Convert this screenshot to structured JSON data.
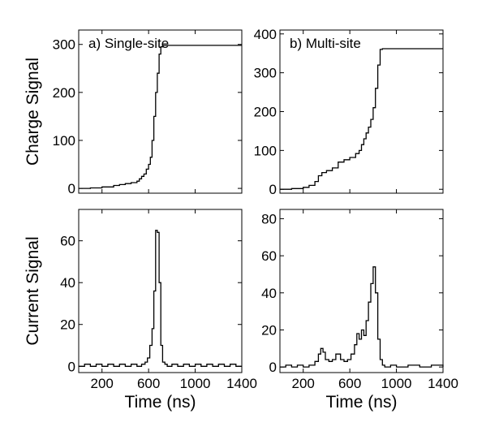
{
  "chart_data": [
    {
      "type": "line",
      "panel": "top-left",
      "annotation": "a) Single-site",
      "ylabel": "Charge Signal",
      "xlabel": "",
      "xlim": [
        0,
        1400
      ],
      "ylim": [
        -10,
        330
      ],
      "xticks": [
        200,
        600,
        1000,
        1400
      ],
      "yticks": [
        0,
        100,
        200,
        300
      ],
      "xtick_labels": [
        "",
        "",
        "",
        ""
      ],
      "ytick_labels": [
        "0",
        "100",
        "200",
        "300"
      ],
      "x": [
        0,
        100,
        200,
        300,
        350,
        400,
        450,
        500,
        520,
        540,
        560,
        580,
        600,
        615,
        630,
        645,
        660,
        675,
        690,
        705,
        720,
        740,
        800,
        900,
        1000,
        1100,
        1200,
        1300,
        1400
      ],
      "y": [
        0,
        1,
        3,
        6,
        8,
        10,
        12,
        15,
        20,
        25,
        30,
        40,
        50,
        65,
        100,
        150,
        200,
        240,
        280,
        295,
        298,
        298,
        298,
        298,
        298,
        298,
        298,
        298,
        298
      ]
    },
    {
      "type": "line",
      "panel": "top-right",
      "annotation": "b) Multi-site",
      "ylabel": "",
      "xlabel": "",
      "xlim": [
        0,
        1400
      ],
      "ylim": [
        -10,
        410
      ],
      "xticks": [
        200,
        600,
        1000,
        1400
      ],
      "yticks": [
        0,
        100,
        200,
        300,
        400
      ],
      "xtick_labels": [
        "",
        "",
        "",
        ""
      ],
      "ytick_labels": [
        "0",
        "100",
        "200",
        "300",
        "400"
      ],
      "x": [
        0,
        100,
        200,
        250,
        300,
        330,
        360,
        400,
        450,
        500,
        550,
        600,
        650,
        680,
        700,
        720,
        740,
        760,
        780,
        800,
        820,
        840,
        860,
        880,
        900,
        1000,
        1100,
        1200,
        1300,
        1400
      ],
      "y": [
        0,
        2,
        5,
        10,
        20,
        35,
        43,
        48,
        55,
        70,
        76,
        82,
        92,
        100,
        115,
        130,
        145,
        160,
        180,
        210,
        260,
        320,
        360,
        362,
        362,
        362,
        362,
        362,
        362,
        362
      ]
    },
    {
      "type": "line",
      "panel": "bottom-left",
      "annotation": "",
      "ylabel": "Current Signal",
      "xlabel": "Time (ns)",
      "xlim": [
        0,
        1400
      ],
      "ylim": [
        -3,
        75
      ],
      "xticks": [
        200,
        600,
        1000,
        1400
      ],
      "yticks": [
        0,
        20,
        40,
        60
      ],
      "xtick_labels": [
        "200",
        "600",
        "1000",
        "1400"
      ],
      "ytick_labels": [
        "0",
        "20",
        "40",
        "60"
      ],
      "x": [
        0,
        50,
        100,
        150,
        200,
        250,
        300,
        350,
        400,
        450,
        500,
        540,
        570,
        590,
        610,
        630,
        645,
        660,
        675,
        690,
        705,
        720,
        740,
        760,
        800,
        850,
        900,
        950,
        1000,
        1050,
        1100,
        1150,
        1200,
        1250,
        1300,
        1350,
        1400
      ],
      "y": [
        0,
        1,
        0,
        1,
        0,
        1,
        0,
        1,
        0,
        1,
        0,
        1,
        2,
        4,
        10,
        18,
        36,
        65,
        64,
        40,
        10,
        2,
        1,
        0,
        1,
        0,
        1,
        0,
        1,
        0,
        1,
        0,
        1,
        0,
        1,
        0,
        0
      ]
    },
    {
      "type": "line",
      "panel": "bottom-right",
      "annotation": "",
      "ylabel": "",
      "xlabel": "Time (ns)",
      "xlim": [
        0,
        1400
      ],
      "ylim": [
        -3,
        85
      ],
      "xticks": [
        200,
        600,
        1000,
        1400
      ],
      "yticks": [
        0,
        20,
        40,
        60,
        80
      ],
      "xtick_labels": [
        "200",
        "600",
        "1000",
        "1400"
      ],
      "ytick_labels": [
        "0",
        "20",
        "40",
        "60",
        "80"
      ],
      "x": [
        0,
        50,
        100,
        150,
        200,
        250,
        300,
        330,
        350,
        370,
        390,
        420,
        450,
        480,
        500,
        520,
        550,
        580,
        610,
        640,
        660,
        680,
        700,
        720,
        740,
        760,
        780,
        800,
        820,
        840,
        860,
        880,
        900,
        950,
        1000,
        1100,
        1200,
        1300,
        1400
      ],
      "y": [
        0,
        1,
        0,
        1,
        0,
        1,
        3,
        7,
        10,
        8,
        4,
        3,
        4,
        7,
        7,
        4,
        3,
        4,
        7,
        12,
        18,
        15,
        20,
        17,
        25,
        35,
        45,
        54,
        40,
        15,
        4,
        1,
        0,
        1,
        0,
        1,
        0,
        1,
        0
      ]
    }
  ]
}
